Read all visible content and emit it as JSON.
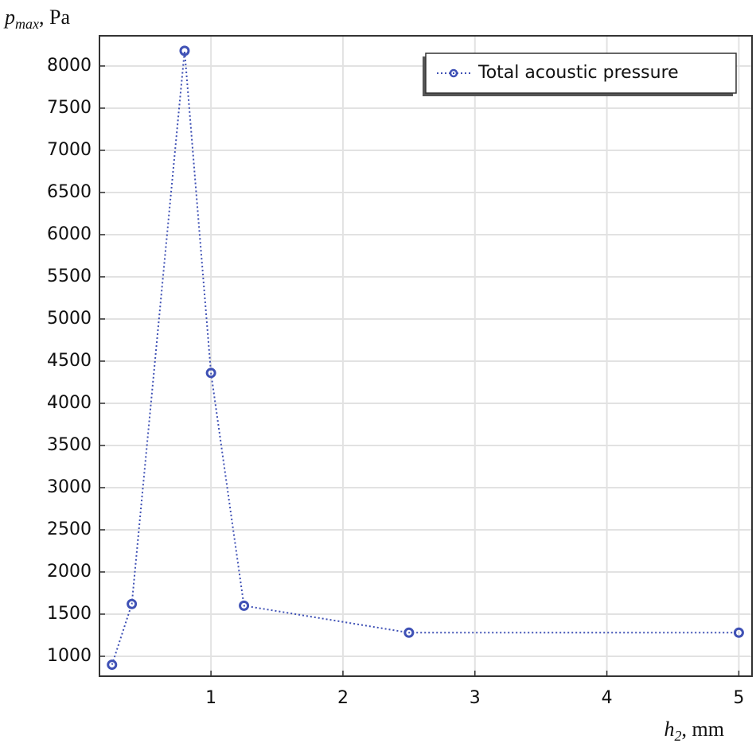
{
  "chart_data": {
    "type": "line",
    "x_label": {
      "main": "h",
      "sub": "2",
      "unit": ", mm"
    },
    "y_label": {
      "main": "p",
      "sub": "max",
      "unit": ", Pa"
    },
    "x": [
      0.25,
      0.4,
      0.8,
      1,
      1.25,
      2.5,
      5
    ],
    "series": [
      {
        "name": "Total acoustic pressure",
        "color": "#3f51b5",
        "values": [
          900,
          1620,
          8180,
          4360,
          1600,
          1280,
          1280
        ]
      }
    ],
    "xlim": [
      0.155,
      5.1
    ],
    "ylim": [
      764,
      8358
    ],
    "xticks": [
      1,
      2,
      3,
      4,
      5
    ],
    "yticks": [
      1000,
      1500,
      2000,
      2500,
      3000,
      3500,
      4000,
      4500,
      5000,
      5500,
      6000,
      6500,
      7000,
      7500,
      8000
    ],
    "grid": true,
    "legend": "upper right"
  }
}
